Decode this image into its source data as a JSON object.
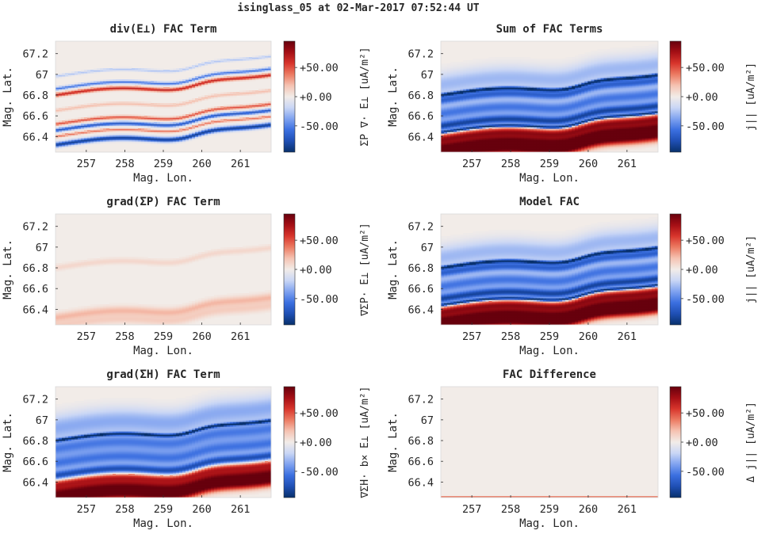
{
  "suptitle": "isinglass_05 at 02-Mar-2017 07:52:44 UT",
  "colors": {
    "colormap": [
      "#08306b",
      "#1f4fb4",
      "#3b6fe0",
      "#7fa2f0",
      "#c9d6f5",
      "#f2ece8",
      "#f5c3b2",
      "#ec7b63",
      "#d8352c",
      "#a50f15",
      "#67000d"
    ]
  },
  "chart_data": [
    {
      "type": "heatmap",
      "title": "div(E⊥) FAC Term",
      "xlabel": "Mag. Lon.",
      "ylabel": "Mag. Lat.",
      "xticks": [
        "257",
        "258",
        "259",
        "260",
        "261"
      ],
      "yticks": [
        "67.2",
        "67",
        "66.8",
        "66.6",
        "66.4"
      ],
      "xlim": [
        256.2,
        261.8
      ],
      "ylim": [
        66.25,
        67.32
      ],
      "colorbar": {
        "label": "ΣP ∇· E⊥ [uA/m²]",
        "ticks": [
          "+50.00",
          "+0.00",
          "-50.00"
        ],
        "clim": [
          -95,
          95
        ]
      },
      "features": [
        {
          "lat_offset": 0.0,
          "amp": 65,
          "width": 0.012
        },
        {
          "lat_offset": 0.06,
          "amp": -55,
          "width": 0.01
        },
        {
          "lat_offset": -0.28,
          "amp": 50,
          "width": 0.01
        },
        {
          "lat_offset": -0.34,
          "amp": -70,
          "width": 0.012
        },
        {
          "lat_offset": -0.4,
          "amp": 40,
          "width": 0.008
        },
        {
          "lat_offset": -0.48,
          "amp": -85,
          "width": 0.016
        },
        {
          "lat_offset": 0.18,
          "amp": -25,
          "width": 0.008
        },
        {
          "lat_offset": -0.15,
          "amp": 20,
          "width": 0.01
        }
      ]
    },
    {
      "type": "heatmap",
      "title": "Sum of FAC Terms",
      "xlabel": "Mag. Lon.",
      "ylabel": "Mag. Lat.",
      "xticks": [
        "257",
        "258",
        "259",
        "260",
        "261"
      ],
      "yticks": [
        "67.2",
        "67",
        "66.8",
        "66.6",
        "66.4"
      ],
      "xlim": [
        256.2,
        261.8
      ],
      "ylim": [
        66.25,
        67.32
      ],
      "colorbar": {
        "label": "j|| [uA/m²]",
        "ticks": [
          "+50.00",
          "+0.00",
          "-50.00"
        ],
        "clim": [
          -95,
          95
        ]
      },
      "features": [
        {
          "lat_offset": 0.1,
          "amp": -30,
          "width": 0.08
        },
        {
          "lat_offset": 0.0,
          "amp": -95,
          "width": 0.01
        },
        {
          "lat_offset": -0.05,
          "amp": -60,
          "width": 0.03
        },
        {
          "lat_offset": -0.18,
          "amp": -55,
          "width": 0.05
        },
        {
          "lat_offset": -0.3,
          "amp": -80,
          "width": 0.03
        },
        {
          "lat_offset": -0.36,
          "amp": -95,
          "width": 0.01
        },
        {
          "lat_offset": -0.42,
          "amp": 70,
          "width": 0.03
        },
        {
          "lat_offset": -0.5,
          "amp": 85,
          "width": 0.04
        },
        {
          "lat_offset": -0.58,
          "amp": 95,
          "width": 0.04
        }
      ]
    },
    {
      "type": "heatmap",
      "title": "grad(ΣP) FAC Term",
      "xlabel": "Mag. Lon.",
      "ylabel": "Mag. Lat.",
      "xticks": [
        "257",
        "258",
        "259",
        "260",
        "261"
      ],
      "yticks": [
        "67.2",
        "67",
        "66.8",
        "66.6",
        "66.4"
      ],
      "xlim": [
        256.2,
        261.8
      ],
      "ylim": [
        66.25,
        67.32
      ],
      "colorbar": {
        "label": "∇ΣP· E⊥ [uA/m²]",
        "ticks": [
          "+50.00",
          "+0.00",
          "-50.00"
        ],
        "clim": [
          -95,
          95
        ]
      },
      "features": [
        {
          "lat_offset": 0.0,
          "amp": 10,
          "width": 0.02
        },
        {
          "lat_offset": -0.48,
          "amp": 22,
          "width": 0.03
        },
        {
          "lat_offset": -0.56,
          "amp": 14,
          "width": 0.03
        }
      ]
    },
    {
      "type": "heatmap",
      "title": "Model FAC",
      "xlabel": "Mag. Lon.",
      "ylabel": "Mag. Lat.",
      "xticks": [
        "257",
        "258",
        "259",
        "260",
        "261"
      ],
      "yticks": [
        "67.2",
        "67",
        "66.8",
        "66.6",
        "66.4"
      ],
      "xlim": [
        256.2,
        261.8
      ],
      "ylim": [
        66.25,
        67.32
      ],
      "colorbar": {
        "label": "j|| [uA/m²]",
        "ticks": [
          "+50.00",
          "+0.00",
          "-50.00"
        ],
        "clim": [
          -95,
          95
        ]
      },
      "features": [
        {
          "lat_offset": 0.1,
          "amp": -30,
          "width": 0.08
        },
        {
          "lat_offset": 0.0,
          "amp": -95,
          "width": 0.01
        },
        {
          "lat_offset": -0.05,
          "amp": -60,
          "width": 0.03
        },
        {
          "lat_offset": -0.18,
          "amp": -55,
          "width": 0.05
        },
        {
          "lat_offset": -0.3,
          "amp": -80,
          "width": 0.03
        },
        {
          "lat_offset": -0.36,
          "amp": -95,
          "width": 0.01
        },
        {
          "lat_offset": -0.42,
          "amp": 70,
          "width": 0.03
        },
        {
          "lat_offset": -0.5,
          "amp": 85,
          "width": 0.04
        },
        {
          "lat_offset": -0.58,
          "amp": 95,
          "width": 0.04
        }
      ]
    },
    {
      "type": "heatmap",
      "title": "grad(ΣH) FAC Term",
      "xlabel": "Mag. Lon.",
      "ylabel": "Mag. Lat.",
      "xticks": [
        "257",
        "258",
        "259",
        "260",
        "261"
      ],
      "yticks": [
        "67.2",
        "67",
        "66.8",
        "66.6",
        "66.4"
      ],
      "xlim": [
        256.2,
        261.8
      ],
      "ylim": [
        66.25,
        67.32
      ],
      "colorbar": {
        "label": "∇ΣH· b× E⊥ [uA/m²]",
        "ticks": [
          "+50.00",
          "+0.00",
          "-50.00"
        ],
        "clim": [
          -95,
          95
        ]
      },
      "features": [
        {
          "lat_offset": 0.12,
          "amp": -35,
          "width": 0.09
        },
        {
          "lat_offset": 0.0,
          "amp": -90,
          "width": 0.01
        },
        {
          "lat_offset": -0.08,
          "amp": -50,
          "width": 0.05
        },
        {
          "lat_offset": -0.22,
          "amp": -55,
          "width": 0.05
        },
        {
          "lat_offset": -0.34,
          "amp": -75,
          "width": 0.03
        },
        {
          "lat_offset": -0.42,
          "amp": 60,
          "width": 0.03
        },
        {
          "lat_offset": -0.5,
          "amp": 80,
          "width": 0.04
        },
        {
          "lat_offset": -0.58,
          "amp": 90,
          "width": 0.04
        }
      ]
    },
    {
      "type": "heatmap",
      "title": "FAC Difference",
      "xlabel": "Mag. Lon.",
      "ylabel": "Mag. Lat.",
      "xticks": [
        "257",
        "258",
        "259",
        "260",
        "261"
      ],
      "yticks": [
        "67.2",
        "67",
        "66.8",
        "66.6",
        "66.4"
      ],
      "xlim": [
        256.2,
        261.8
      ],
      "ylim": [
        66.25,
        67.32
      ],
      "colorbar": {
        "label": "Δ j|| [uA/m²]",
        "ticks": [
          "+50.00",
          "+0.00",
          "-50.00"
        ],
        "clim": [
          -95,
          95
        ]
      },
      "features": []
    }
  ]
}
